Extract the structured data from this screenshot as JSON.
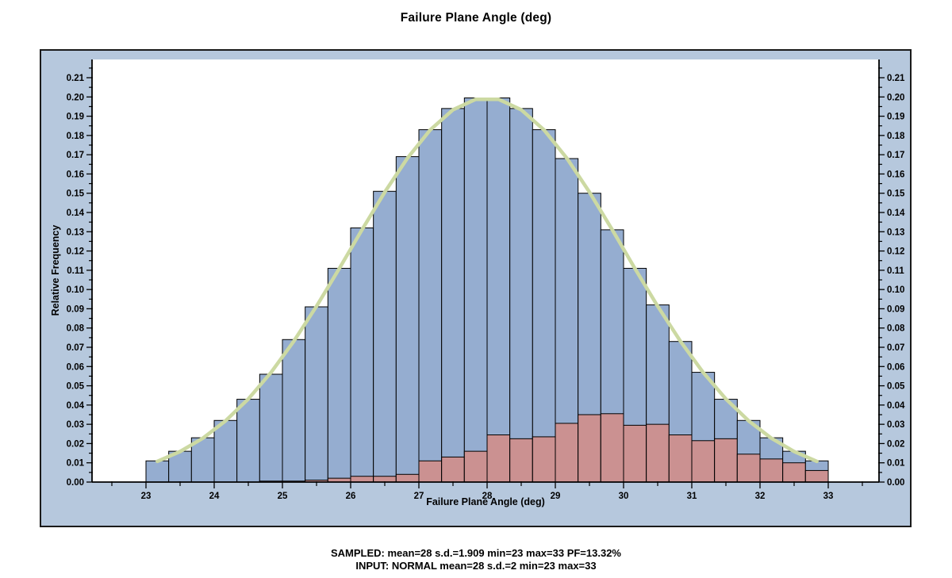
{
  "chart_title": "Failure Plane Angle (deg)",
  "axes": {
    "y_label": "Relative Frequency",
    "x_label": "Failure Plane Angle (deg)",
    "y_tick_labels": [
      "0.00",
      "0.01",
      "0.02",
      "0.03",
      "0.04",
      "0.05",
      "0.06",
      "0.07",
      "0.08",
      "0.09",
      "0.10",
      "0.11",
      "0.12",
      "0.13",
      "0.14",
      "0.15",
      "0.16",
      "0.17",
      "0.18",
      "0.19",
      "0.20",
      "0.21"
    ],
    "x_tick_labels": [
      "23",
      "24",
      "25",
      "26",
      "27",
      "28",
      "29",
      "30",
      "31",
      "32",
      "33"
    ]
  },
  "footer": {
    "line1": "SAMPLED: mean=28 s.d.=1.909 min=23 max=33 PF=13.32%",
    "line2": "INPUT: NORMAL mean=28 s.d.=2 min=23 max=33"
  },
  "colors": {
    "panel_bg": "#b6c8dd",
    "plot_bg": "#ffffff",
    "bar_all": "#95add0",
    "bar_failed": "#cb9191",
    "curve": "#ccd9a2",
    "axis": "#000000",
    "text": "#000000",
    "panel_border": "#1a1a1a"
  },
  "chart_data": {
    "type": "bar",
    "subtype": "histogram-with-fit-curve",
    "title": "Failure Plane Angle (deg)",
    "xlabel": "Failure Plane Angle (deg)",
    "ylabel": "Relative Frequency",
    "xlim": [
      22.21,
      33.74
    ],
    "ylim": [
      0,
      0.2195
    ],
    "grid": false,
    "legend_position": "none",
    "bin_start": 23,
    "bin_count": 30,
    "bin_width": 0.33333,
    "x_major_ticks": [
      23,
      24,
      25,
      26,
      27,
      28,
      29,
      30,
      31,
      32,
      33
    ],
    "x_minor_tick_step": 0.5,
    "y_major_tick_step": 0.01,
    "y_minor_tick_step": 0.005,
    "y_tick_max": 0.21,
    "series": [
      {
        "name": "all-samples-relative-frequency",
        "values": [
          0.011,
          0.016,
          0.023,
          0.032,
          0.043,
          0.056,
          0.074,
          0.091,
          0.111,
          0.132,
          0.151,
          0.169,
          0.183,
          0.194,
          0.1995,
          0.1995,
          0.194,
          0.183,
          0.168,
          0.15,
          0.131,
          0.111,
          0.092,
          0.073,
          0.057,
          0.043,
          0.032,
          0.023,
          0.016,
          0.011
        ]
      },
      {
        "name": "failed-samples-relative-frequency",
        "values": [
          0,
          0,
          0,
          0,
          0,
          0.0005,
          0.0005,
          0.001,
          0.002,
          0.003,
          0.003,
          0.004,
          0.011,
          0.013,
          0.016,
          0.0245,
          0.0225,
          0.0235,
          0.0305,
          0.035,
          0.0355,
          0.0295,
          0.03,
          0.0245,
          0.0215,
          0.0225,
          0.0145,
          0.012,
          0.01,
          0.006
        ]
      }
    ],
    "overlay_line": {
      "name": "normal-fit-curve",
      "distribution": "normal",
      "mean": 28,
      "sd": 2,
      "peak_value": 0.1995,
      "x_range": [
        23.1667,
        32.8333
      ],
      "sampled_at": "bin-centers"
    }
  }
}
